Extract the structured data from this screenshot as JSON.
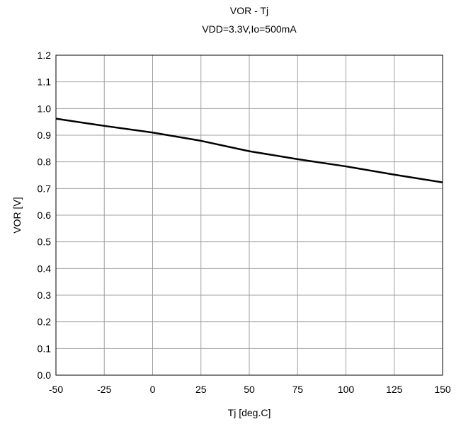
{
  "chart_data": {
    "type": "line",
    "title": "VOR - Tj",
    "subtitle": "VDD=3.3V,Io=500mA",
    "xlabel": "Tj [deg.C]",
    "ylabel": "VOR [V]",
    "xlim": [
      -50,
      150
    ],
    "ylim": [
      0.0,
      1.2
    ],
    "xticks": [
      "-50",
      "-25",
      "0",
      "25",
      "50",
      "75",
      "100",
      "125",
      "150"
    ],
    "yticks": [
      "0.0",
      "0.1",
      "0.2",
      "0.3",
      "0.4",
      "0.5",
      "0.6",
      "0.7",
      "0.8",
      "0.9",
      "1.0",
      "1.1",
      "1.2"
    ],
    "grid": true,
    "series": [
      {
        "x": [
          -50,
          -25,
          0,
          25,
          50,
          75,
          100,
          125,
          150
        ],
        "y": [
          0.962,
          0.935,
          0.91,
          0.879,
          0.84,
          0.81,
          0.783,
          0.752,
          0.723
        ]
      }
    ],
    "colors": {
      "line": "#000000",
      "grid": "#a0a0a0",
      "frame": "#000000"
    }
  }
}
